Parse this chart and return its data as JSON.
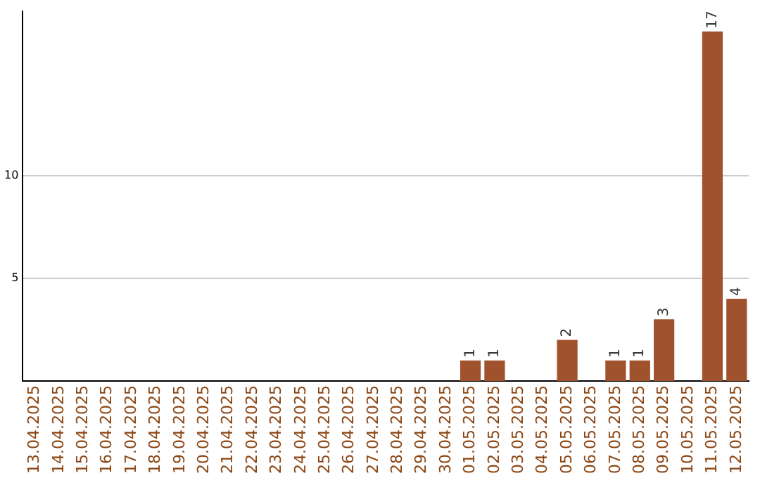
{
  "chart_data": {
    "type": "bar",
    "categories": [
      "13.04.2025",
      "14.04.2025",
      "15.04.2025",
      "16.04.2025",
      "17.04.2025",
      "18.04.2025",
      "19.04.2025",
      "20.04.2025",
      "21.04.2025",
      "22.04.2025",
      "23.04.2025",
      "24.04.2025",
      "25.04.2025",
      "26.04.2025",
      "27.04.2025",
      "28.04.2025",
      "29.04.2025",
      "30.04.2025",
      "01.05.2025",
      "02.05.2025",
      "03.05.2025",
      "04.05.2025",
      "05.05.2025",
      "06.05.2025",
      "07.05.2025",
      "08.05.2025",
      "09.05.2025",
      "10.05.2025",
      "11.05.2025",
      "12.05.2025"
    ],
    "values": [
      0,
      0,
      0,
      0,
      0,
      0,
      0,
      0,
      0,
      0,
      0,
      0,
      0,
      0,
      0,
      0,
      0,
      0,
      1,
      1,
      0,
      0,
      2,
      0,
      1,
      1,
      3,
      0,
      17,
      4
    ],
    "value_labels": [
      null,
      null,
      null,
      null,
      null,
      null,
      null,
      null,
      null,
      null,
      null,
      null,
      null,
      null,
      null,
      null,
      null,
      null,
      "1",
      "1",
      null,
      null,
      "2",
      null,
      "1",
      "1",
      "3",
      null,
      "17",
      "4"
    ],
    "color": "#a0522d",
    "ylim": [
      0,
      18
    ],
    "yticks": [
      5,
      10
    ],
    "grid": "y",
    "legend": false
  }
}
